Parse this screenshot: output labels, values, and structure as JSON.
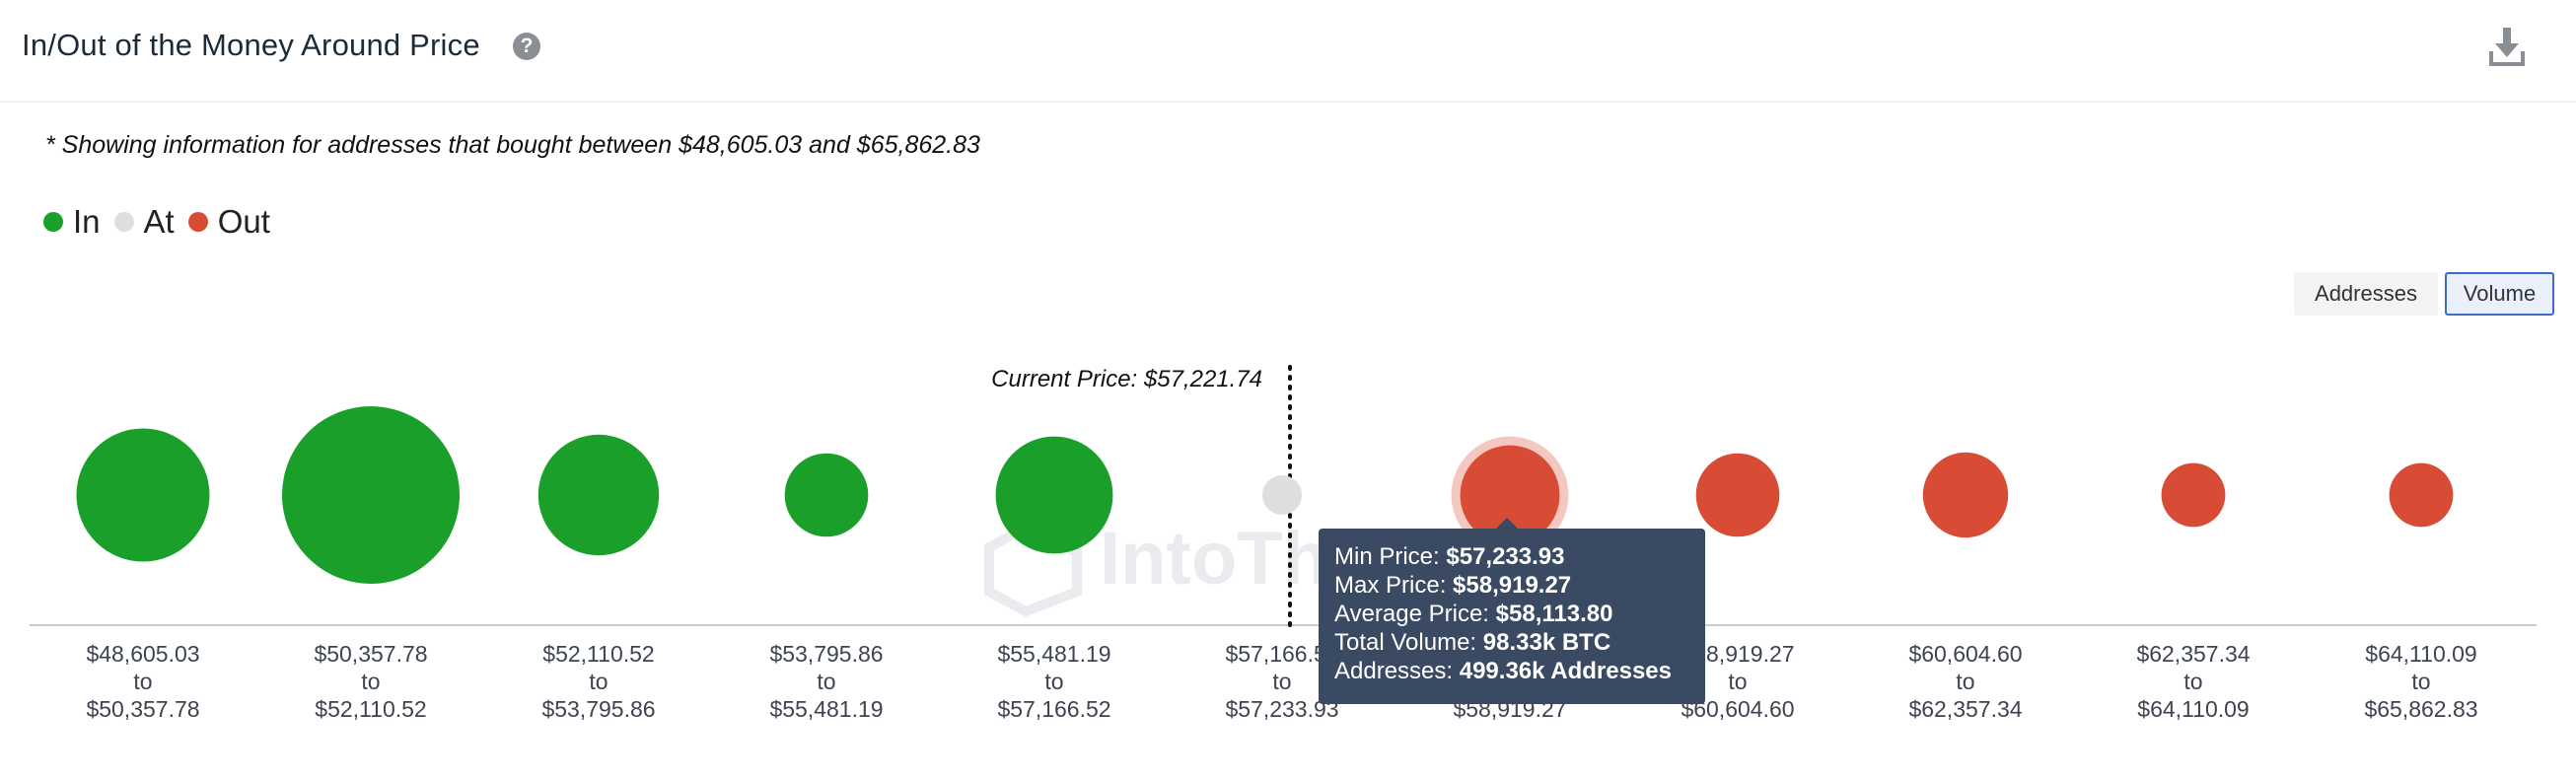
{
  "header": {
    "title": "In/Out of the Money Around Price",
    "help_icon": "question-icon",
    "download_icon": "download-icon"
  },
  "note": "* Showing information for addresses that bought between $48,605.03 and $65,862.83",
  "legend": [
    {
      "label": "In",
      "color": "#1aa02a"
    },
    {
      "label": "At",
      "color": "#dedede"
    },
    {
      "label": "Out",
      "color": "#d84b35"
    }
  ],
  "toggles": {
    "addresses": "Addresses",
    "volume": "Volume",
    "selected": "Volume"
  },
  "watermark": "IntoThe",
  "chart_data": {
    "type": "bubble",
    "metric": "Volume",
    "current_price_label": "Current Price: $57,221.74",
    "current_price": 57221.74,
    "highlighted_index": 6,
    "ranges": [
      {
        "min": "$48,605.03",
        "max": "$50,357.78",
        "status": "In",
        "relative_size": 0.75
      },
      {
        "min": "$50,357.78",
        "max": "$52,110.52",
        "status": "In",
        "relative_size": 1.0
      },
      {
        "min": "$52,110.52",
        "max": "$53,795.86",
        "status": "In",
        "relative_size": 0.68
      },
      {
        "min": "$53,795.86",
        "max": "$55,481.19",
        "status": "In",
        "relative_size": 0.47
      },
      {
        "min": "$55,481.19",
        "max": "$57,166.52",
        "status": "In",
        "relative_size": 0.66
      },
      {
        "min": "$57,166.52",
        "max": "$57,233.93",
        "status": "At",
        "relative_size": 0.0
      },
      {
        "min": "$57,233.93",
        "max": "$58,919.27",
        "status": "Out",
        "relative_size": 0.56
      },
      {
        "min": "$58,919.27",
        "max": "$60,604.60",
        "status": "Out",
        "relative_size": 0.47
      },
      {
        "min": "$60,604.60",
        "max": "$62,357.34",
        "status": "Out",
        "relative_size": 0.48
      },
      {
        "min": "$62,357.34",
        "max": "$64,110.09",
        "status": "Out",
        "relative_size": 0.36
      },
      {
        "min": "$64,110.09",
        "max": "$65,862.83",
        "status": "Out",
        "relative_size": 0.36
      }
    ],
    "tooltip": {
      "min_price_label": "Min Price:",
      "min_price": "$57,233.93",
      "max_price_label": "Max Price:",
      "max_price": "$58,919.27",
      "avg_price_label": "Average Price:",
      "avg_price": "$58,113.80",
      "volume_label": "Total Volume:",
      "volume": "98.33k BTC",
      "addresses_label": "Addresses:",
      "addresses": "499.36k Addresses"
    }
  }
}
